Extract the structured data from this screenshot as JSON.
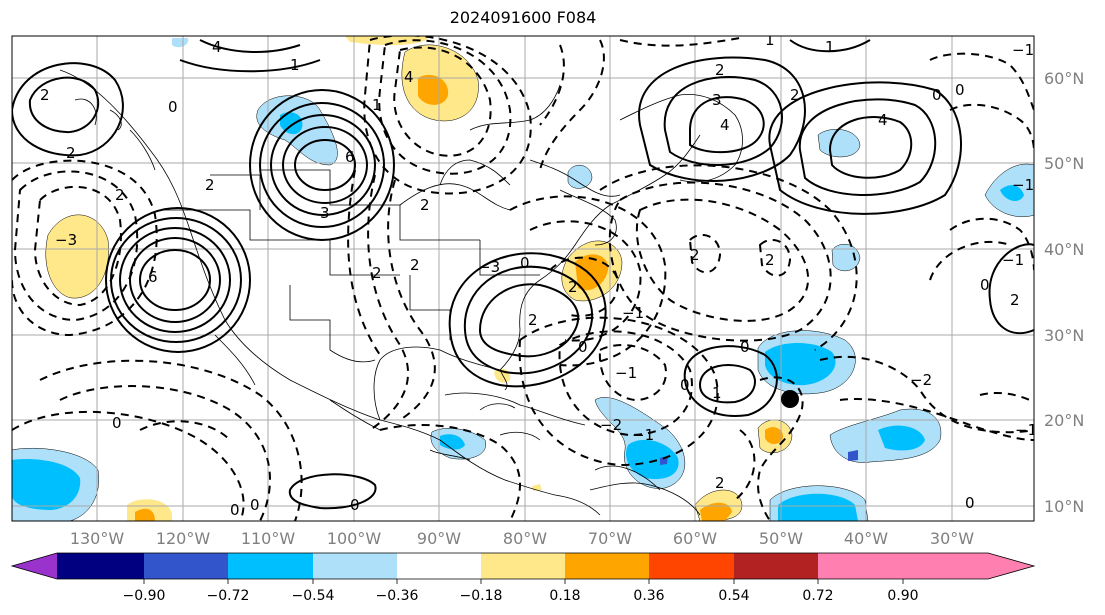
{
  "title": "2024091600 F084",
  "lat_labels": [
    "60°N",
    "50°N",
    "40°N",
    "30°N",
    "20°N",
    "10°N"
  ],
  "lon_labels": [
    "130°W",
    "120°W",
    "110°W",
    "100°W",
    "90°W",
    "80°W",
    "70°W",
    "60°W",
    "50°W",
    "40°W",
    "30°W"
  ],
  "colorbar": {
    "colors": [
      "#9933cc",
      "#000080",
      "#3355cc",
      "#00bfff",
      "#aee0fa",
      "#ffffff",
      "#ffe88a",
      "#ffa500",
      "#ff4500",
      "#b22222",
      "#ff80b0"
    ],
    "tick_labels": [
      "−0.90",
      "−0.72",
      "−0.54",
      "−0.36",
      "−0.18",
      "0.18",
      "0.36",
      "0.54",
      "0.72",
      "0.90"
    ]
  },
  "contour_labels": [
    "4",
    "4",
    "0",
    "2",
    "2",
    "2",
    "6",
    "3",
    "2",
    "1",
    "−3",
    "6",
    "0",
    "2",
    "2",
    "2",
    "−3",
    "2",
    "−1",
    "−1",
    "0",
    "2",
    "2",
    "−1",
    "1",
    "−2",
    "2",
    "2",
    "3",
    "4",
    "1",
    "0",
    "2",
    "0",
    "4",
    "−1",
    "−1",
    "2",
    "0",
    "1",
    "0",
    "1",
    "0",
    "0",
    "0",
    "0",
    "0",
    "−2",
    "−1",
    "2",
    "−1",
    "0"
  ],
  "colors_meaning": {
    "positive_contour": "solid",
    "negative_contour": "dashed"
  },
  "marker": {
    "type": "dot",
    "color": "#000000"
  }
}
